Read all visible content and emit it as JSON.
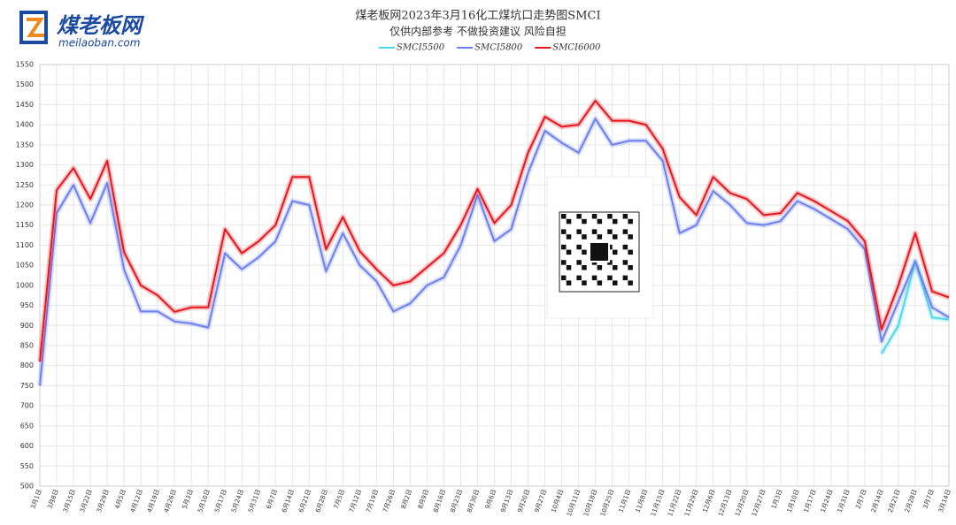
{
  "logo": {
    "name": "煤老板网",
    "url": "meilaoban.com"
  },
  "chart_data": {
    "type": "line",
    "title": "煤老板网2023年3月16化工煤坑口走势图SMCI",
    "subtitle": "仅供内部参考 不做投资建议 风险自担",
    "categories": [
      "3月1日",
      "3月8日",
      "3月15日",
      "3月22日",
      "3月29日",
      "4月5日",
      "4月12日",
      "4月19日",
      "4月26日",
      "5月3日",
      "5月10日",
      "5月17日",
      "5月24日",
      "5月31日",
      "6月7日",
      "6月14日",
      "6月21日",
      "6月28日",
      "7月5日",
      "7月12日",
      "7月19日",
      "7月26日",
      "8月2日",
      "8月9日",
      "8月16日",
      "8月23日",
      "8月30日",
      "9月6日",
      "9月13日",
      "9月20日",
      "9月27日",
      "10月4日",
      "10月11日",
      "10月18日",
      "10月25日",
      "11月1日",
      "11月8日",
      "11月15日",
      "11月22日",
      "11月29日",
      "12月6日",
      "12月13日",
      "12月20日",
      "12月27日",
      "1月3日",
      "1月10日",
      "1月17日",
      "1月24日",
      "1月31日",
      "2月7日",
      "2月14日",
      "2月21日",
      "2月28日",
      "3月7日",
      "3月14日"
    ],
    "series": [
      {
        "name": "SMCI5500",
        "color": "#4dd9e8",
        "values": [
          null,
          null,
          null,
          null,
          null,
          null,
          null,
          null,
          null,
          null,
          null,
          null,
          null,
          null,
          null,
          null,
          null,
          null,
          null,
          null,
          null,
          null,
          null,
          null,
          null,
          null,
          null,
          null,
          null,
          null,
          null,
          null,
          null,
          null,
          null,
          null,
          null,
          null,
          null,
          null,
          null,
          null,
          null,
          null,
          null,
          null,
          null,
          null,
          null,
          null,
          830,
          900,
          1060,
          920,
          915
        ]
      },
      {
        "name": "SMCI5800",
        "color": "#6b7ff0",
        "values": [
          750,
          1180,
          1250,
          1155,
          1255,
          1040,
          935,
          935,
          910,
          905,
          895,
          1080,
          1040,
          1070,
          1110,
          1210,
          1200,
          1035,
          1130,
          1050,
          1010,
          935,
          955,
          1000,
          1020,
          1100,
          1225,
          1110,
          1140,
          1280,
          1385,
          1355,
          1330,
          1415,
          1350,
          1360,
          1360,
          1310,
          1130,
          1150,
          1235,
          1200,
          1155,
          1150,
          1160,
          1210,
          1190,
          1165,
          1140,
          1090,
          860,
          960,
          1060,
          945,
          920
        ]
      },
      {
        "name": "SMCI6000",
        "color": "#e8141c",
        "values": [
          810,
          1237,
          1292,
          1215,
          1310,
          1083,
          1000,
          975,
          934,
          945,
          945,
          1140,
          1080,
          1110,
          1150,
          1270,
          1270,
          1090,
          1170,
          1085,
          1040,
          1000,
          1010,
          1045,
          1080,
          1150,
          1240,
          1155,
          1200,
          1330,
          1420,
          1395,
          1400,
          1460,
          1410,
          1410,
          1400,
          1340,
          1220,
          1175,
          1270,
          1230,
          1215,
          1175,
          1180,
          1230,
          1210,
          1185,
          1160,
          1110,
          890,
          1000,
          1130,
          985,
          970
        ]
      }
    ],
    "ylim": [
      500,
      1550
    ],
    "yticks": [
      500,
      550,
      600,
      650,
      700,
      750,
      800,
      850,
      900,
      950,
      1000,
      1050,
      1100,
      1150,
      1200,
      1250,
      1300,
      1350,
      1400,
      1450,
      1500,
      1550
    ],
    "grid": true
  }
}
